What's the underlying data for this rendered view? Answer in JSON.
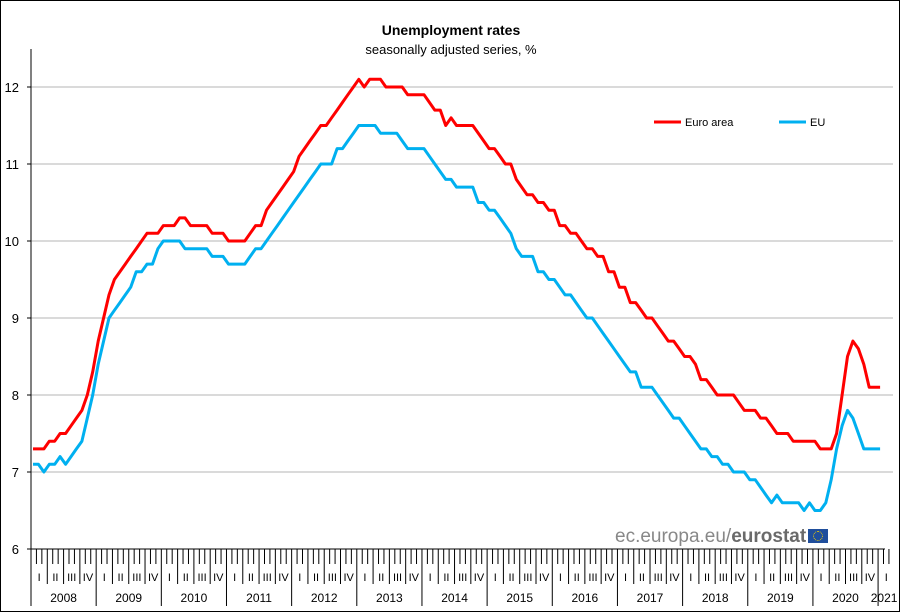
{
  "chart_data": {
    "type": "line",
    "title": "Unemployment rates",
    "subtitle": "seasonally adjusted series, %",
    "xlabel": "",
    "ylabel": "",
    "ylim": [
      6,
      12
    ],
    "yticks": [
      6,
      7,
      8,
      9,
      10,
      11,
      12
    ],
    "grid": true,
    "legend_position": "top-right",
    "x_start": "2008-01",
    "frequency": "monthly",
    "years": [
      "2008",
      "2009",
      "2010",
      "2011",
      "2012",
      "2013",
      "2014",
      "2015",
      "2016",
      "2017",
      "2018",
      "2019",
      "2020",
      "2021"
    ],
    "quarter_labels": [
      "I",
      "II",
      "III",
      "IV"
    ],
    "series": [
      {
        "name": "Euro area",
        "color": "#ff0000",
        "values": [
          7.3,
          7.3,
          7.3,
          7.4,
          7.4,
          7.5,
          7.5,
          7.6,
          7.7,
          7.8,
          8.0,
          8.3,
          8.7,
          9.0,
          9.3,
          9.5,
          9.6,
          9.7,
          9.8,
          9.9,
          10.0,
          10.1,
          10.1,
          10.1,
          10.2,
          10.2,
          10.2,
          10.3,
          10.3,
          10.2,
          10.2,
          10.2,
          10.2,
          10.1,
          10.1,
          10.1,
          10.0,
          10.0,
          10.0,
          10.0,
          10.1,
          10.2,
          10.2,
          10.4,
          10.5,
          10.6,
          10.7,
          10.8,
          10.9,
          11.1,
          11.2,
          11.3,
          11.4,
          11.5,
          11.5,
          11.6,
          11.7,
          11.8,
          11.9,
          12.0,
          12.1,
          12.0,
          12.1,
          12.1,
          12.1,
          12.0,
          12.0,
          12.0,
          12.0,
          11.9,
          11.9,
          11.9,
          11.9,
          11.8,
          11.7,
          11.7,
          11.5,
          11.6,
          11.5,
          11.5,
          11.5,
          11.5,
          11.4,
          11.3,
          11.2,
          11.2,
          11.1,
          11.0,
          11.0,
          10.8,
          10.7,
          10.6,
          10.6,
          10.5,
          10.5,
          10.4,
          10.4,
          10.2,
          10.2,
          10.1,
          10.1,
          10.0,
          9.9,
          9.9,
          9.8,
          9.8,
          9.6,
          9.6,
          9.4,
          9.4,
          9.2,
          9.2,
          9.1,
          9.0,
          9.0,
          8.9,
          8.8,
          8.7,
          8.7,
          8.6,
          8.5,
          8.5,
          8.4,
          8.2,
          8.2,
          8.1,
          8.0,
          8.0,
          8.0,
          8.0,
          7.9,
          7.8,
          7.8,
          7.8,
          7.7,
          7.7,
          7.6,
          7.5,
          7.5,
          7.5,
          7.4,
          7.4,
          7.4,
          7.4,
          7.4,
          7.3,
          7.3,
          7.3,
          7.5,
          8.0,
          8.5,
          8.7,
          8.6,
          8.4,
          8.1,
          8.1,
          8.1
        ]
      },
      {
        "name": "EU",
        "color": "#00b0f0",
        "values": [
          7.1,
          7.1,
          7.0,
          7.1,
          7.1,
          7.2,
          7.1,
          7.2,
          7.3,
          7.4,
          7.7,
          8.0,
          8.4,
          8.7,
          9.0,
          9.1,
          9.2,
          9.3,
          9.4,
          9.6,
          9.6,
          9.7,
          9.7,
          9.9,
          10.0,
          10.0,
          10.0,
          10.0,
          9.9,
          9.9,
          9.9,
          9.9,
          9.9,
          9.8,
          9.8,
          9.8,
          9.7,
          9.7,
          9.7,
          9.7,
          9.8,
          9.9,
          9.9,
          10.0,
          10.1,
          10.2,
          10.3,
          10.4,
          10.5,
          10.6,
          10.7,
          10.8,
          10.9,
          11.0,
          11.0,
          11.0,
          11.2,
          11.2,
          11.3,
          11.4,
          11.5,
          11.5,
          11.5,
          11.5,
          11.4,
          11.4,
          11.4,
          11.4,
          11.3,
          11.2,
          11.2,
          11.2,
          11.2,
          11.1,
          11.0,
          10.9,
          10.8,
          10.8,
          10.7,
          10.7,
          10.7,
          10.7,
          10.5,
          10.5,
          10.4,
          10.4,
          10.3,
          10.2,
          10.1,
          9.9,
          9.8,
          9.8,
          9.8,
          9.6,
          9.6,
          9.5,
          9.5,
          9.4,
          9.3,
          9.3,
          9.2,
          9.1,
          9.0,
          9.0,
          8.9,
          8.8,
          8.7,
          8.6,
          8.5,
          8.4,
          8.3,
          8.3,
          8.1,
          8.1,
          8.1,
          8.0,
          7.9,
          7.8,
          7.7,
          7.7,
          7.6,
          7.5,
          7.4,
          7.3,
          7.3,
          7.2,
          7.2,
          7.1,
          7.1,
          7.0,
          7.0,
          7.0,
          6.9,
          6.9,
          6.8,
          6.7,
          6.6,
          6.7,
          6.6,
          6.6,
          6.6,
          6.6,
          6.5,
          6.6,
          6.5,
          6.5,
          6.6,
          6.9,
          7.3,
          7.6,
          7.8,
          7.7,
          7.5,
          7.3,
          7.3,
          7.3,
          7.3
        ]
      }
    ]
  },
  "watermark": {
    "prefix": "ec.europa.eu/",
    "brand": "eurostat"
  }
}
